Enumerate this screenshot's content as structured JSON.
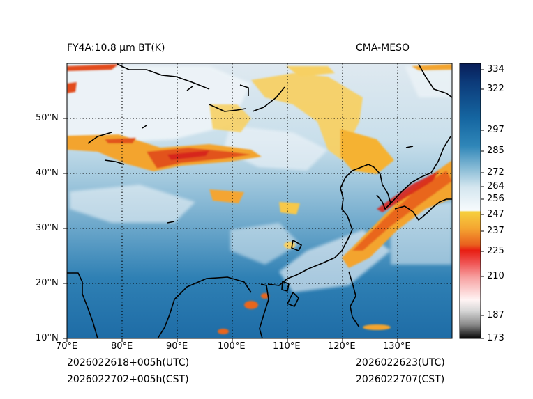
{
  "header": {
    "product_title": "FY4A:10.8 µm BT(K)",
    "model_name": "CMA-MESO"
  },
  "footer": {
    "init_utc": "2026022618+005h(UTC)",
    "init_cst": "2026022702+005h(CST)",
    "valid_utc": "2026022623(UTC)",
    "valid_cst": "2026022707(CST)"
  },
  "map": {
    "lon_labels": [
      "70°E",
      "80°E",
      "90°E",
      "100°E",
      "110°E",
      "120°E",
      "130°E"
    ],
    "lat_labels": [
      "10°N",
      "20°N",
      "30°N",
      "40°N",
      "50°N"
    ],
    "lon_values": [
      70,
      80,
      90,
      100,
      110,
      120,
      130
    ],
    "lat_values": [
      10,
      20,
      30,
      40,
      50
    ],
    "extent": {
      "lon_min": 70,
      "lon_max": 140,
      "lat_min": 10,
      "lat_max": 60
    }
  },
  "colorbar": {
    "labels": [
      "334",
      "322",
      "297",
      "285",
      "272",
      "264",
      "256",
      "247",
      "237",
      "225",
      "210",
      "187",
      "173"
    ],
    "values": [
      334,
      322,
      297,
      285,
      272,
      264,
      256,
      247,
      237,
      225,
      210,
      187,
      173
    ],
    "min": 173,
    "max": 338
  },
  "colors": {
    "warm_ocean": "#1f6fa8",
    "land_haze": "#9fc8df",
    "cloud_white": "#eef4f8",
    "cloud_yellow": "#f6c43a",
    "cloud_orange": "#ef7d1f",
    "cloud_red": "#d7261e",
    "coastline": "#000000"
  }
}
